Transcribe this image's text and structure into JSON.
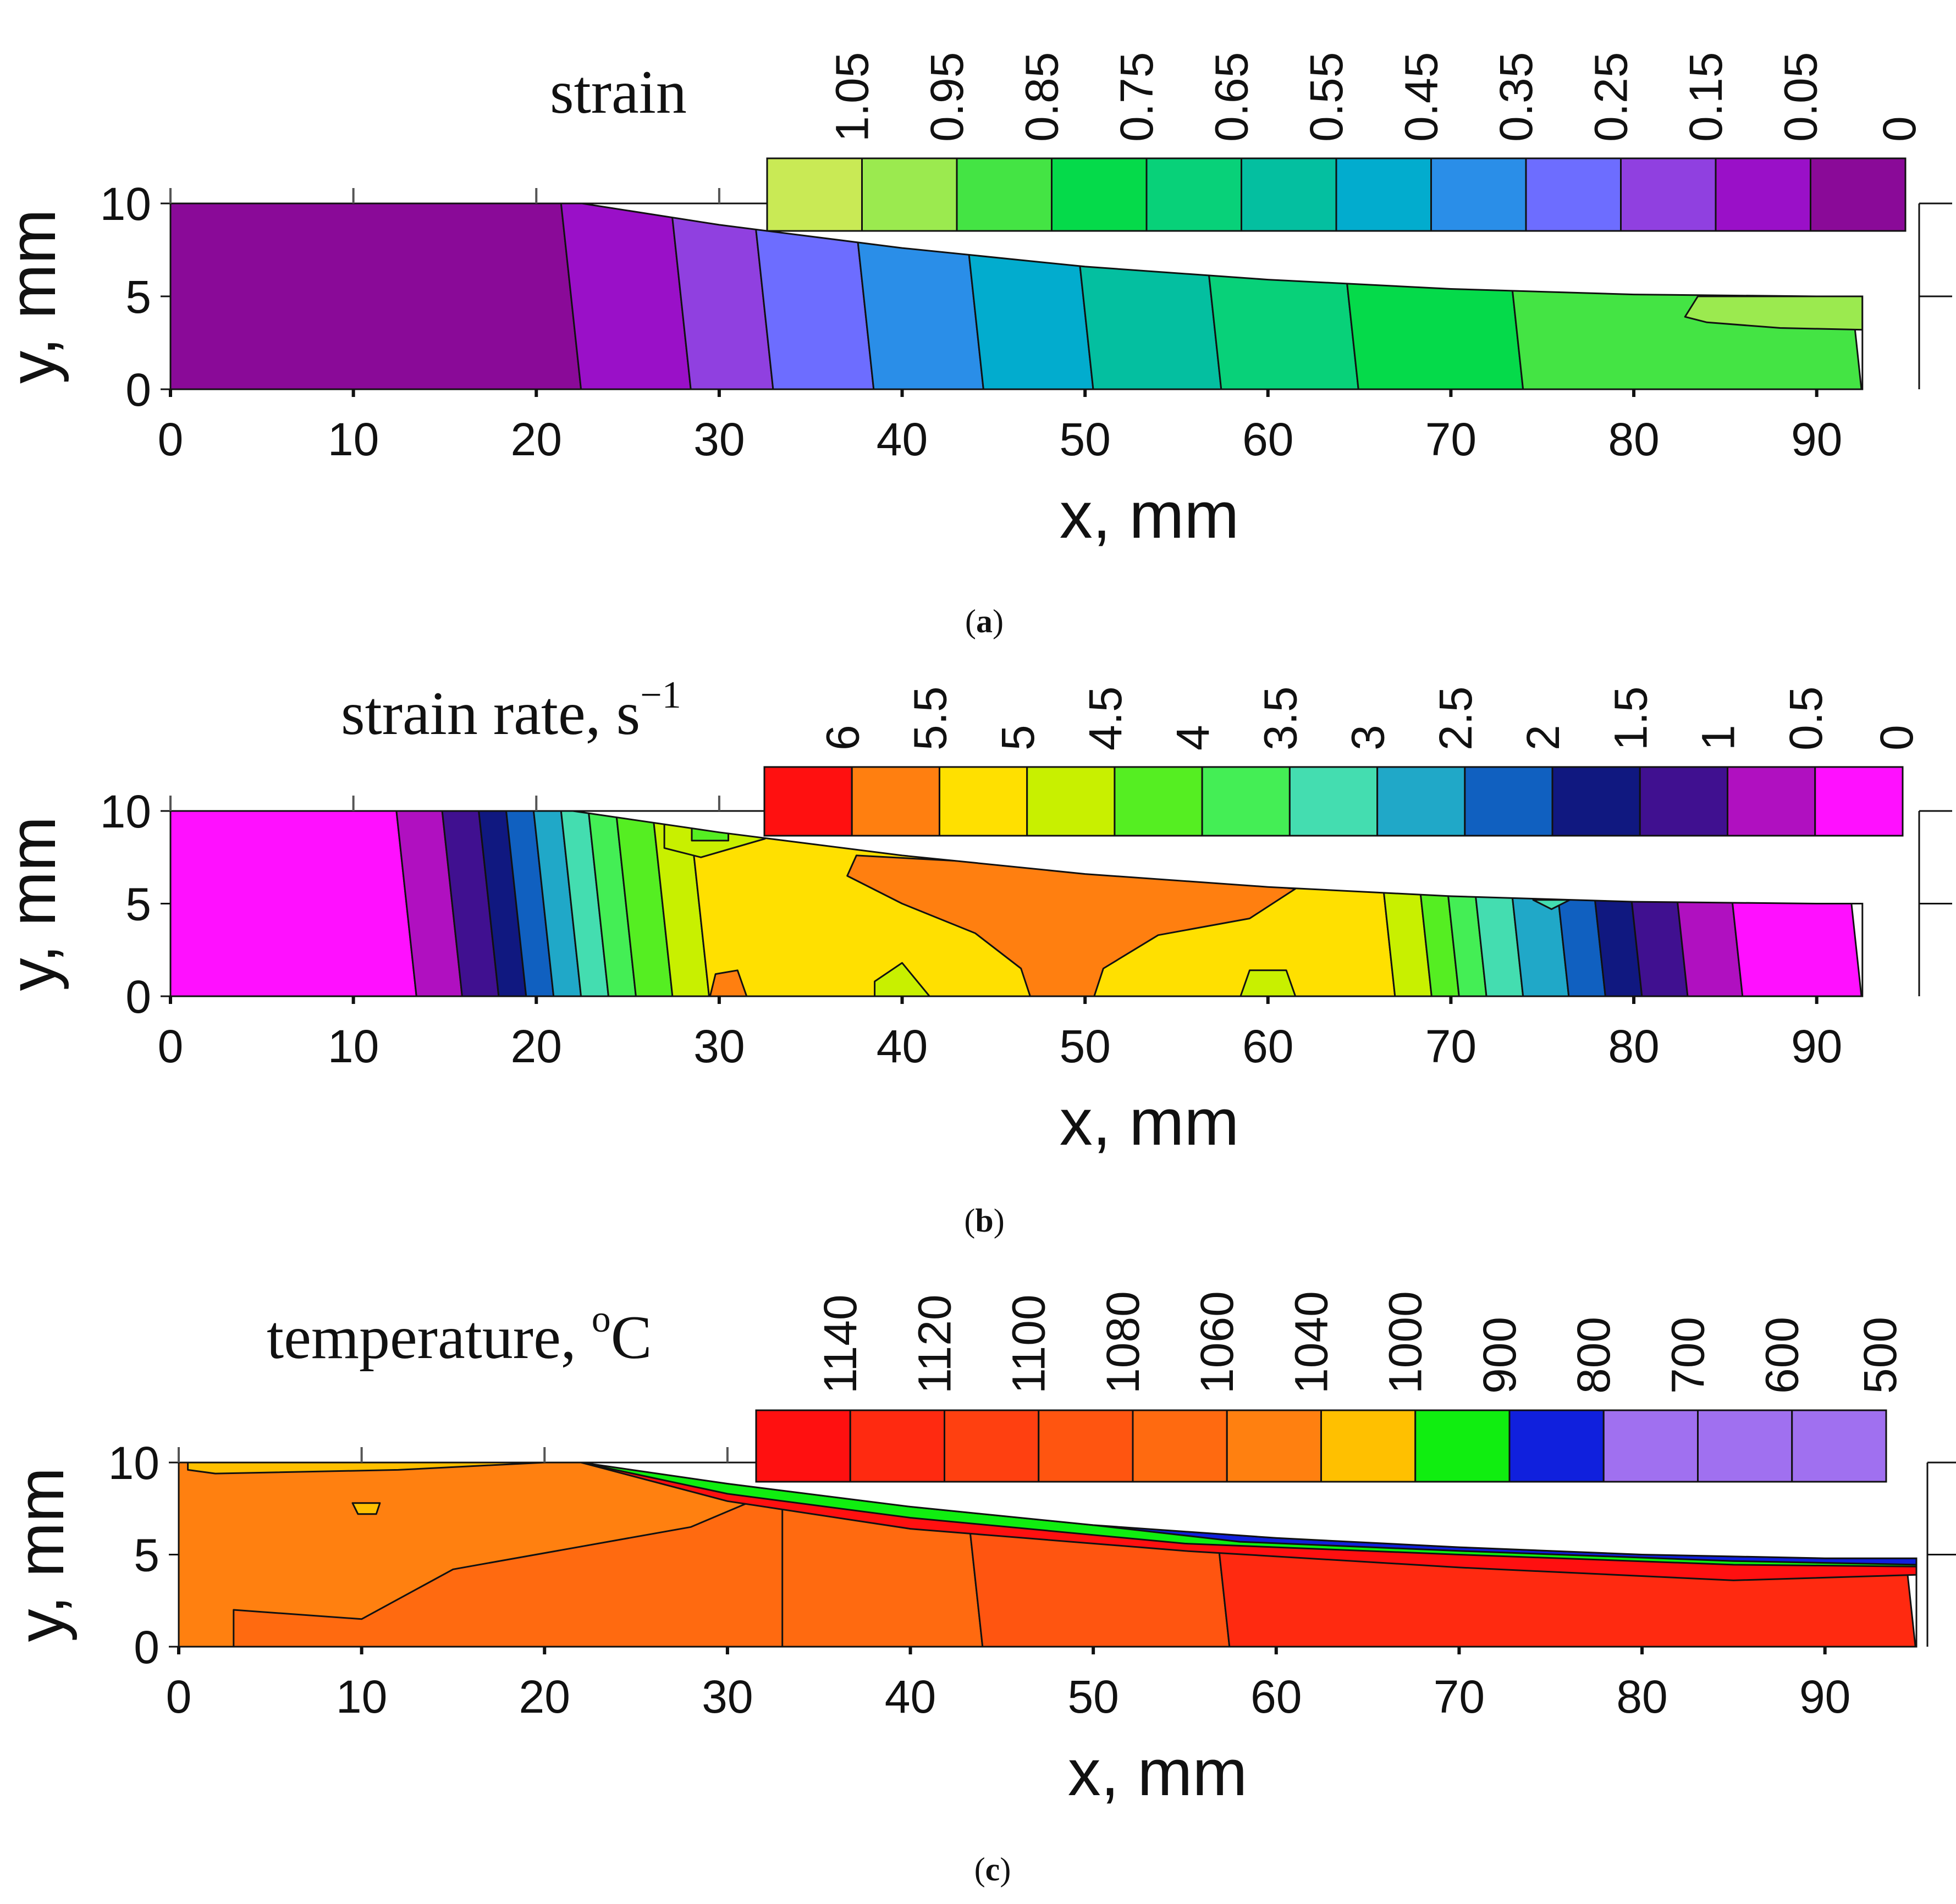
{
  "chart_data": [
    {
      "type": "contour",
      "panel": "a",
      "caption_prefix": "(",
      "caption_letter": "a",
      "caption_suffix": ")",
      "colorbar_title": "strain",
      "xlabel": "x, mm",
      "ylabel": "y, mm",
      "xlim": [
        0,
        95
      ],
      "ylim": [
        0,
        10
      ],
      "x_ticks": [
        "0",
        "10",
        "20",
        "30",
        "40",
        "50",
        "60",
        "70",
        "80",
        "90"
      ],
      "y_ticks": [
        "0",
        "5",
        "10"
      ],
      "part_outline": [
        [
          0,
          10
        ],
        [
          22.5,
          10
        ],
        [
          30,
          8.85
        ],
        [
          40,
          7.6
        ],
        [
          50,
          6.6
        ],
        [
          60,
          5.9
        ],
        [
          70,
          5.4
        ],
        [
          80,
          5.1
        ],
        [
          90,
          5.0
        ],
        [
          92.5,
          5.0
        ],
        [
          92.5,
          0
        ],
        [
          0,
          0
        ]
      ],
      "colorbar": {
        "labels": [
          "1.05",
          "0.95",
          "0.85",
          "0.75",
          "0.65",
          "0.55",
          "0.45",
          "0.35",
          "0.25",
          "0.15",
          "0.05",
          "0"
        ],
        "colors": [
          "#c9ea55",
          "#9bea4f",
          "#44e444",
          "#05da4a",
          "#08d179",
          "#04bfa0",
          "#02acce",
          "#2a8ee8",
          "#6d6dff",
          "#9040e0",
          "#9a10c8",
          "#8a0a98"
        ]
      },
      "bands": [
        {
          "x0": 0,
          "x1": 22.5,
          "color": "#8a0a98"
        },
        {
          "x0": 22.5,
          "x1": 28.5,
          "color": "#9a10c8"
        },
        {
          "x0": 28.5,
          "x1": 33,
          "color": "#9040e0"
        },
        {
          "x0": 33,
          "x1": 38.5,
          "color": "#6d6dff"
        },
        {
          "x0": 38.5,
          "x1": 44.5,
          "color": "#2a8ee8"
        },
        {
          "x0": 44.5,
          "x1": 50.5,
          "color": "#02acce"
        },
        {
          "x0": 50.5,
          "x1": 57.5,
          "color": "#04bfa0"
        },
        {
          "x0": 57.5,
          "x1": 65,
          "color": "#08d179"
        },
        {
          "x0": 65,
          "x1": 74,
          "color": "#05da4a"
        },
        {
          "x0": 74,
          "x1": 92.5,
          "color": "#44e444"
        }
      ],
      "blobs": [
        {
          "points": [
            [
              83.5,
              5.0
            ],
            [
              92.5,
              5.0
            ],
            [
              92.5,
              3.2
            ],
            [
              88,
              3.3
            ],
            [
              84,
              3.6
            ],
            [
              82.8,
              3.9
            ]
          ],
          "color": "#9bea4f"
        }
      ]
    },
    {
      "type": "contour",
      "panel": "b",
      "caption_prefix": "(",
      "caption_letter": "b",
      "caption_suffix": ")",
      "colorbar_title": "strain rate, s",
      "colorbar_title_sup": "−1",
      "xlabel": "x, mm",
      "ylabel": "y, mm",
      "xlim": [
        0,
        95
      ],
      "ylim": [
        0,
        10
      ],
      "x_ticks": [
        "0",
        "10",
        "20",
        "30",
        "40",
        "50",
        "60",
        "70",
        "80",
        "90"
      ],
      "y_ticks": [
        "0",
        "5",
        "10"
      ],
      "part_outline": [
        [
          0,
          10
        ],
        [
          22,
          10
        ],
        [
          30,
          8.85
        ],
        [
          40,
          7.6
        ],
        [
          50,
          6.6
        ],
        [
          60,
          5.9
        ],
        [
          70,
          5.4
        ],
        [
          80,
          5.1
        ],
        [
          90,
          5.0
        ],
        [
          92.5,
          5.0
        ],
        [
          92.5,
          0
        ],
        [
          0,
          0
        ]
      ],
      "colorbar": {
        "labels": [
          "6",
          "5.5",
          "5",
          "4.5",
          "4",
          "3.5",
          "3",
          "2.5",
          "2",
          "1.5",
          "1",
          "0.5",
          "0"
        ],
        "colors": [
          "#ff1010",
          "#ff7f10",
          "#ffe000",
          "#c8f000",
          "#55ee22",
          "#44ee55",
          "#44ddb0",
          "#20a8c8",
          "#1060c0",
          "#101880",
          "#401090",
          "#b010c0",
          "#ff10ff"
        ]
      },
      "bands": [
        {
          "x0": 0,
          "x1": 13.5,
          "color": "#ff10ff"
        },
        {
          "x0": 13.5,
          "x1": 16,
          "color": "#b010c0"
        },
        {
          "x0": 16,
          "x1": 18,
          "color": "#401090"
        },
        {
          "x0": 18,
          "x1": 19.5,
          "color": "#101880"
        },
        {
          "x0": 19.5,
          "x1": 21,
          "color": "#1060c0"
        },
        {
          "x0": 21,
          "x1": 22.5,
          "color": "#20a8c8"
        },
        {
          "x0": 22.5,
          "x1": 24,
          "color": "#44ddb0"
        },
        {
          "x0": 24,
          "x1": 25.5,
          "color": "#44ee55"
        },
        {
          "x0": 25.5,
          "x1": 27.5,
          "color": "#55ee22"
        },
        {
          "x0": 27.5,
          "x1": 29.5,
          "color": "#c8f000"
        },
        {
          "x0": 29.5,
          "x1": 67,
          "color": "#ffe000"
        },
        {
          "x0": 67,
          "x1": 69,
          "color": "#c8f000"
        },
        {
          "x0": 69,
          "x1": 70.5,
          "color": "#55ee22"
        },
        {
          "x0": 70.5,
          "x1": 72,
          "color": "#44ee55"
        },
        {
          "x0": 72,
          "x1": 74,
          "color": "#44ddb0"
        },
        {
          "x0": 74,
          "x1": 76.5,
          "color": "#20a8c8"
        },
        {
          "x0": 76.5,
          "x1": 78.5,
          "color": "#1060c0"
        },
        {
          "x0": 78.5,
          "x1": 80.5,
          "color": "#101880"
        },
        {
          "x0": 80.5,
          "x1": 83,
          "color": "#401090"
        },
        {
          "x0": 83,
          "x1": 86,
          "color": "#b010c0"
        },
        {
          "x0": 86,
          "x1": 92.5,
          "color": "#ff10ff"
        }
      ],
      "blobs": [
        {
          "points": [
            [
              37.5,
              7.6
            ],
            [
              45,
              7.2
            ],
            [
              55,
              6.4
            ],
            [
              61.5,
              5.8
            ],
            [
              59,
              4.2
            ],
            [
              54,
              3.3
            ],
            [
              51,
              1.5
            ],
            [
              50.5,
              0
            ],
            [
              47,
              0
            ],
            [
              46.5,
              1.5
            ],
            [
              44,
              3.4
            ],
            [
              40,
              5
            ],
            [
              37,
              6.5
            ]
          ],
          "color": "#ff7f10"
        },
        {
          "points": [
            [
              27,
              9.4
            ],
            [
              31,
              9.5
            ],
            [
              32.5,
              8.5
            ],
            [
              29,
              7.5
            ],
            [
              27,
              8
            ]
          ],
          "color": "#c8f000"
        },
        {
          "points": [
            [
              28.5,
              9.2
            ],
            [
              30.5,
              9.2
            ],
            [
              30.5,
              8.4
            ],
            [
              28.5,
              8.4
            ]
          ],
          "color": "#55ee22"
        },
        {
          "points": [
            [
              38.5,
              0
            ],
            [
              41.5,
              0
            ],
            [
              40,
              1.8
            ],
            [
              38.5,
              0.8
            ]
          ],
          "color": "#c8f000"
        },
        {
          "points": [
            [
              29.5,
              0
            ],
            [
              31.5,
              0
            ],
            [
              31,
              1.4
            ],
            [
              29.8,
              1.2
            ]
          ],
          "color": "#ff7f10"
        },
        {
          "points": [
            [
              58.5,
              0
            ],
            [
              61.5,
              0
            ],
            [
              61,
              1.4
            ],
            [
              59,
              1.4
            ]
          ],
          "color": "#c8f000"
        },
        {
          "points": [
            [
              74.5,
              5.2
            ],
            [
              75.5,
              4.7
            ],
            [
              76.5,
              5.2
            ]
          ],
          "color": "#44ddb0"
        }
      ]
    },
    {
      "type": "contour",
      "panel": "c",
      "caption_prefix": "(",
      "caption_letter": "c",
      "caption_suffix": ")",
      "colorbar_title": "temperature, ",
      "colorbar_title_sup": "o",
      "colorbar_title_end": "C",
      "xlabel": "x, mm",
      "ylabel": "y, mm",
      "xlim": [
        0,
        95
      ],
      "ylim": [
        0,
        10
      ],
      "x_ticks": [
        "0",
        "10",
        "20",
        "30",
        "40",
        "50",
        "60",
        "70",
        "80",
        "90"
      ],
      "y_ticks": [
        "0",
        "5",
        "10"
      ],
      "part_outline": [
        [
          0,
          10
        ],
        [
          22,
          10
        ],
        [
          30,
          8.85
        ],
        [
          40,
          7.6
        ],
        [
          50,
          6.6
        ],
        [
          60,
          5.9
        ],
        [
          70,
          5.4
        ],
        [
          80,
          5.0
        ],
        [
          90,
          4.8
        ],
        [
          95,
          4.8
        ],
        [
          95,
          0
        ],
        [
          0,
          0
        ]
      ],
      "colorbar": {
        "labels": [
          "1140",
          "1120",
          "1100",
          "1080",
          "1060",
          "1040",
          "1000",
          "900",
          "800",
          "700",
          "600",
          "500"
        ],
        "colors": [
          "#ff1010",
          "#ff2a10",
          "#ff4010",
          "#ff5510",
          "#ff6a10",
          "#ff8010",
          "#ffc000",
          "#10ee10",
          "#1020dd",
          "#a070f0",
          "#a070f0",
          "#a070f0"
        ]
      },
      "bands": [
        {
          "x0": 0,
          "x1": 32.5,
          "color": "#ff8010"
        },
        {
          "x0": 32.5,
          "x1": 44,
          "color": "#ff6a10"
        },
        {
          "x0": 44,
          "x1": 57.5,
          "color": "#ff5510"
        },
        {
          "x0": 57.5,
          "x1": 95,
          "color": "#ff2a10"
        }
      ],
      "blobs": [
        {
          "points": [
            [
              0.5,
              10
            ],
            [
              20,
              10
            ],
            [
              12,
              9.6
            ],
            [
              2,
              9.4
            ],
            [
              0.5,
              9.6
            ]
          ],
          "color": "#ffc000"
        },
        {
          "points": [
            [
              9.5,
              7.8
            ],
            [
              11,
              7.8
            ],
            [
              10.8,
              7.2
            ],
            [
              9.8,
              7.2
            ]
          ],
          "color": "#ffc000"
        },
        {
          "points": [
            [
              15,
              4.2
            ],
            [
              28,
              6.5
            ],
            [
              33,
              8.6
            ],
            [
              33,
              0
            ],
            [
              32.5,
              0
            ],
            [
              22,
              0
            ],
            [
              10,
              0
            ],
            [
              3,
              0
            ],
            [
              3,
              2
            ],
            [
              10,
              1.5
            ]
          ],
          "color": "#ff6a10"
        },
        {
          "points": [
            [
              22,
              10
            ],
            [
              30,
              8.85
            ],
            [
              40,
              7.6
            ],
            [
              50,
              6.6
            ],
            [
              60,
              5.9
            ],
            [
              70,
              5.4
            ],
            [
              80,
              5.0
            ],
            [
              90,
              4.8
            ],
            [
              95,
              4.8
            ],
            [
              95,
              3.9
            ],
            [
              85,
              3.6
            ],
            [
              70,
              4.3
            ],
            [
              55,
              5.2
            ],
            [
              40,
              6.4
            ],
            [
              30,
              7.9
            ]
          ],
          "color": "#ff1010"
        },
        {
          "points": [
            [
              22,
              10
            ],
            [
              30,
              8.85
            ],
            [
              40,
              7.6
            ],
            [
              50,
              6.6
            ],
            [
              60,
              5.9
            ],
            [
              70,
              5.4
            ],
            [
              80,
              5.0
            ],
            [
              90,
              4.8
            ],
            [
              95,
              4.8
            ],
            [
              95,
              4.35
            ],
            [
              85,
              4.45
            ],
            [
              70,
              5.0
            ],
            [
              55,
              5.6
            ],
            [
              40,
              7.0
            ],
            [
              30,
              8.3
            ]
          ],
          "color": "#10ee10"
        },
        {
          "points": [
            [
              50,
              6.6
            ],
            [
              60,
              5.9
            ],
            [
              70,
              5.4
            ],
            [
              80,
              5.0
            ],
            [
              90,
              4.8
            ],
            [
              95,
              4.8
            ],
            [
              95,
              4.45
            ],
            [
              85,
              4.65
            ],
            [
              70,
              5.2
            ],
            [
              58,
              5.7
            ]
          ],
          "color": "#1020dd"
        }
      ]
    }
  ]
}
